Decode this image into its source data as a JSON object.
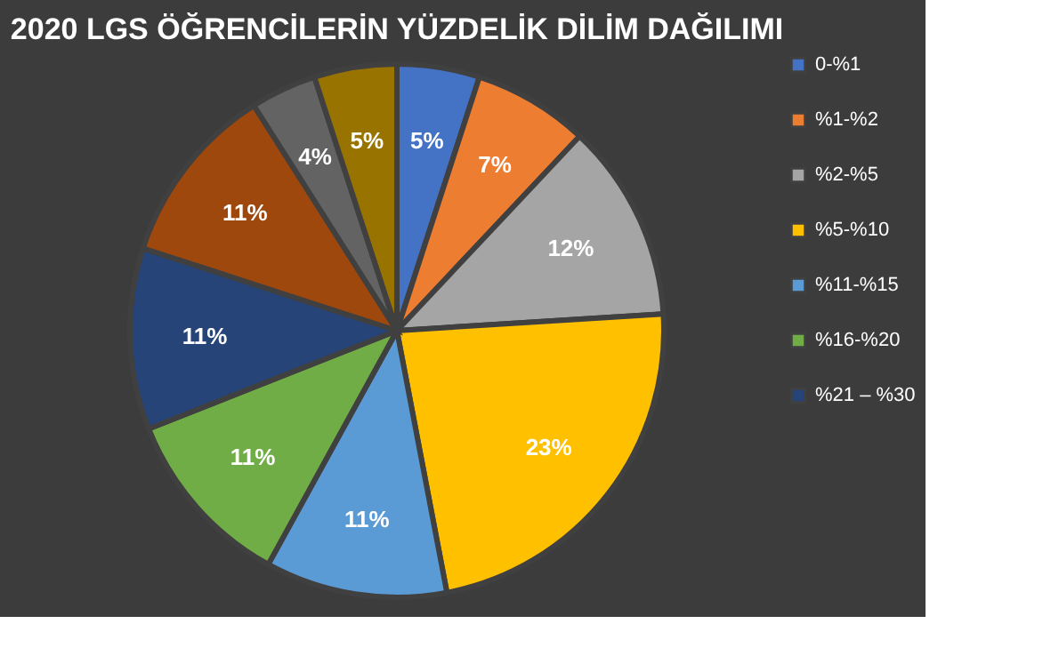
{
  "chart_data": {
    "type": "pie",
    "title": "2020 LGS ÖĞRENCİLERİN YÜZDELİK DİLİM DAĞILIMI",
    "categories": [
      "0-%1",
      "%1-%2",
      "%2-%5",
      "%5-%10",
      "%11-%15",
      "%16-%20",
      "%21 – %30",
      null,
      null,
      null
    ],
    "values": [
      5,
      7,
      12,
      23,
      11,
      11,
      11,
      11,
      4,
      5
    ],
    "value_labels": [
      "5%",
      "7%",
      "12%",
      "23%",
      "11%",
      "11%",
      "11%",
      "11%",
      "4%",
      "5%"
    ],
    "colors": [
      "#4472c4",
      "#ed7d31",
      "#a5a5a5",
      "#ffc000",
      "#5b9bd5",
      "#70ad47",
      "#264478",
      "#9e480e",
      "#636363",
      "#997300"
    ],
    "legend": "right"
  }
}
